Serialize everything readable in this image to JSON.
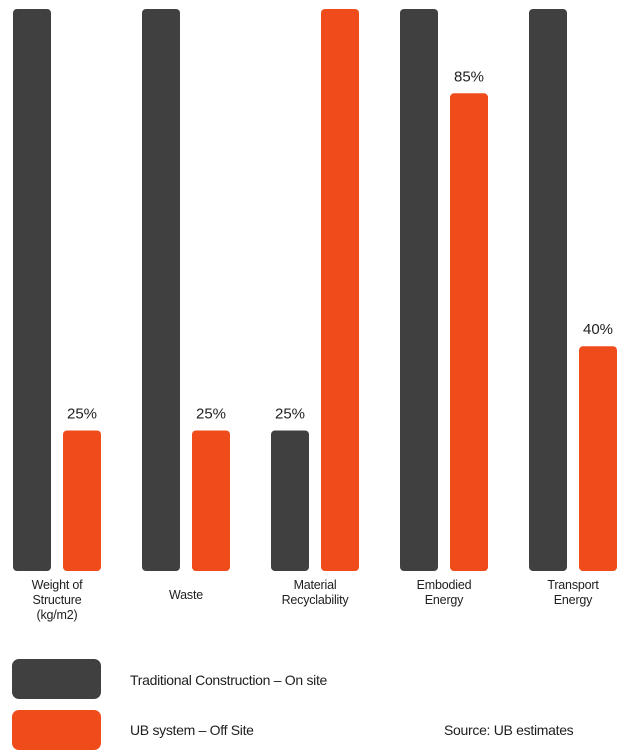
{
  "chart_data": {
    "type": "bar",
    "categories": [
      "Weight of\nStructure\n(kg/m2)",
      "Waste",
      "Material\nRecyclability",
      "Embodied\nEnergy",
      "Transport\nEnergy"
    ],
    "series": [
      {
        "name": "Traditional Construction – On site",
        "color": "#404040",
        "values": [
          100,
          100,
          25,
          100,
          100
        ],
        "labels": [
          "",
          "",
          "25%",
          "",
          ""
        ]
      },
      {
        "name": "UB system – Off Site",
        "color": "#f04b1a",
        "values": [
          25,
          25,
          100,
          85,
          40
        ],
        "labels": [
          "25%",
          "25%",
          "",
          "85%",
          "40%"
        ]
      }
    ],
    "ylim": [
      0,
      100
    ],
    "grid": false,
    "legend": "bottom-left",
    "source": "Source: UB estimates"
  }
}
